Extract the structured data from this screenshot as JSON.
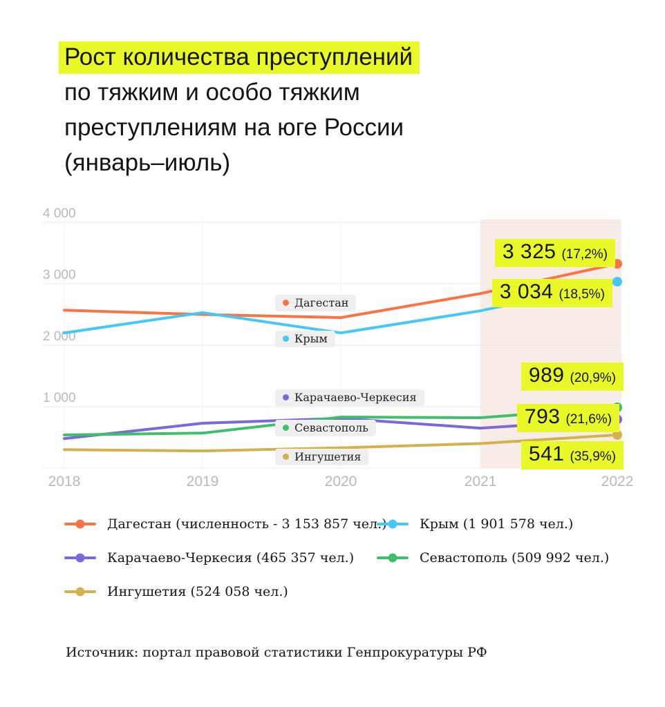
{
  "title": {
    "line1": "Рост количества преступлений",
    "line2": "по тяжким и особо тяжким",
    "line3": "преступлениям на юге России",
    "line4": "(январь–июль)"
  },
  "colors": {
    "highlight_yellow": "#e9f928",
    "band_pink": "#f8ece8",
    "grid": "#e8e8e8",
    "tick_text": "#b9b9b9"
  },
  "chart_data": {
    "type": "line",
    "x": [
      2018,
      2019,
      2020,
      2021,
      2022
    ],
    "x_tick_labels": [
      "2018",
      "2019",
      "2020",
      "2021",
      "2022"
    ],
    "y_ticks": [
      1000,
      2000,
      3000,
      4000
    ],
    "y_tick_labels": [
      "1 000",
      "2 000",
      "3 000",
      "4 000"
    ],
    "ylim": [
      0,
      4000
    ],
    "grid": true,
    "highlight_band": {
      "from": 2021,
      "to": 2022
    },
    "series": [
      {
        "name": "Дагестан",
        "color": "#fa7345",
        "values": [
          2570,
          2500,
          2450,
          2840,
          3325
        ],
        "end_label": {
          "value": "3 325",
          "pct": "(17,2%)"
        }
      },
      {
        "name": "Крым",
        "color": "#45c8f5",
        "values": [
          2200,
          2530,
          2200,
          2560,
          3034
        ],
        "end_label": {
          "value": "3 034",
          "pct": "(18,5%)"
        }
      },
      {
        "name": "Карачаево-Черкесия",
        "color": "#7b68d9",
        "values": [
          480,
          730,
          810,
          650,
          793
        ],
        "end_label": {
          "value": "793",
          "pct": "(21,6%)"
        }
      },
      {
        "name": "Севастополь",
        "color": "#3fbe6e",
        "values": [
          540,
          570,
          830,
          820,
          989
        ],
        "end_label": {
          "value": "989",
          "pct": "(20,9%)"
        }
      },
      {
        "name": "Ингушетия",
        "color": "#d2b24c",
        "values": [
          300,
          280,
          330,
          400,
          541
        ],
        "end_label": {
          "value": "541",
          "pct": "(35,9%)"
        }
      }
    ]
  },
  "legend": {
    "items": [
      {
        "label": "Дагестан (численность - 3 153 857 чел.)",
        "color": "#fa7345"
      },
      {
        "label": "Крым (1 901 578 чел.)",
        "color": "#45c8f5"
      },
      {
        "label": "Карачаево-Черкесия (465 357 чел.)",
        "color": "#7b68d9"
      },
      {
        "label": "Севастополь (509 992 чел.)",
        "color": "#3fbe6e"
      },
      {
        "label": "Ингушетия (524 058 чел.)",
        "color": "#d2b24c"
      }
    ]
  },
  "source": "Источник: портал правовой статистики Генпрокуратуры РФ"
}
